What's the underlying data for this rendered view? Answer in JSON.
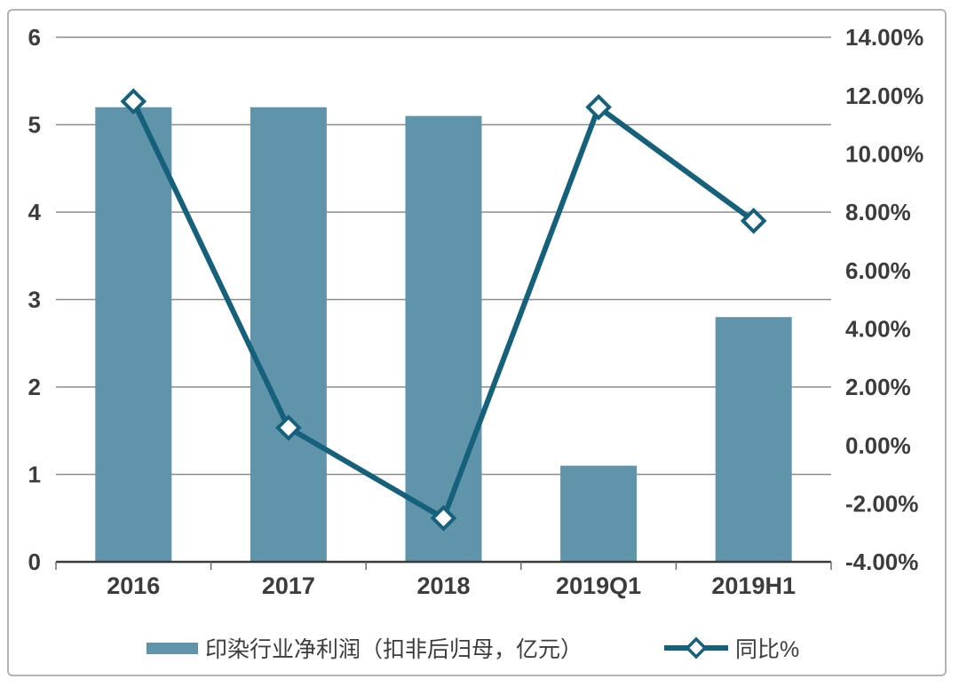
{
  "chart_data": {
    "type": "bar+line combo",
    "categories": [
      "2016",
      "2017",
      "2018",
      "2019Q1",
      "2019H1"
    ],
    "series": [
      {
        "name": "印染行业净利润（扣非后归母，亿元）",
        "type": "bar",
        "axis": "left",
        "color": "#6094aa",
        "values": [
          5.2,
          5.2,
          5.1,
          1.1,
          2.8
        ]
      },
      {
        "name": "同比%",
        "type": "line",
        "axis": "right",
        "color": "#15607a",
        "marker": "diamond",
        "marker_fill": "#ffffff",
        "values": [
          11.8,
          0.6,
          -2.5,
          11.6,
          7.7
        ]
      }
    ],
    "left_axis": {
      "min": 0,
      "max": 6,
      "tick_values": [
        0,
        1,
        2,
        3,
        4,
        5,
        6
      ],
      "tick_labels": [
        "0",
        "1",
        "2",
        "3",
        "4",
        "5",
        "6"
      ]
    },
    "right_axis": {
      "min": -4,
      "max": 14,
      "tick_values": [
        14,
        12,
        10,
        8,
        6,
        4,
        2,
        0,
        -2,
        -4
      ],
      "tick_labels": [
        "14.00%",
        "12.00%",
        "10.00%",
        "8.00%",
        "6.00%",
        "4.00%",
        "2.00%",
        "0.00%",
        "-2.00%",
        "-4.00%"
      ]
    },
    "grid": true,
    "legend_position": "bottom",
    "title": ""
  }
}
